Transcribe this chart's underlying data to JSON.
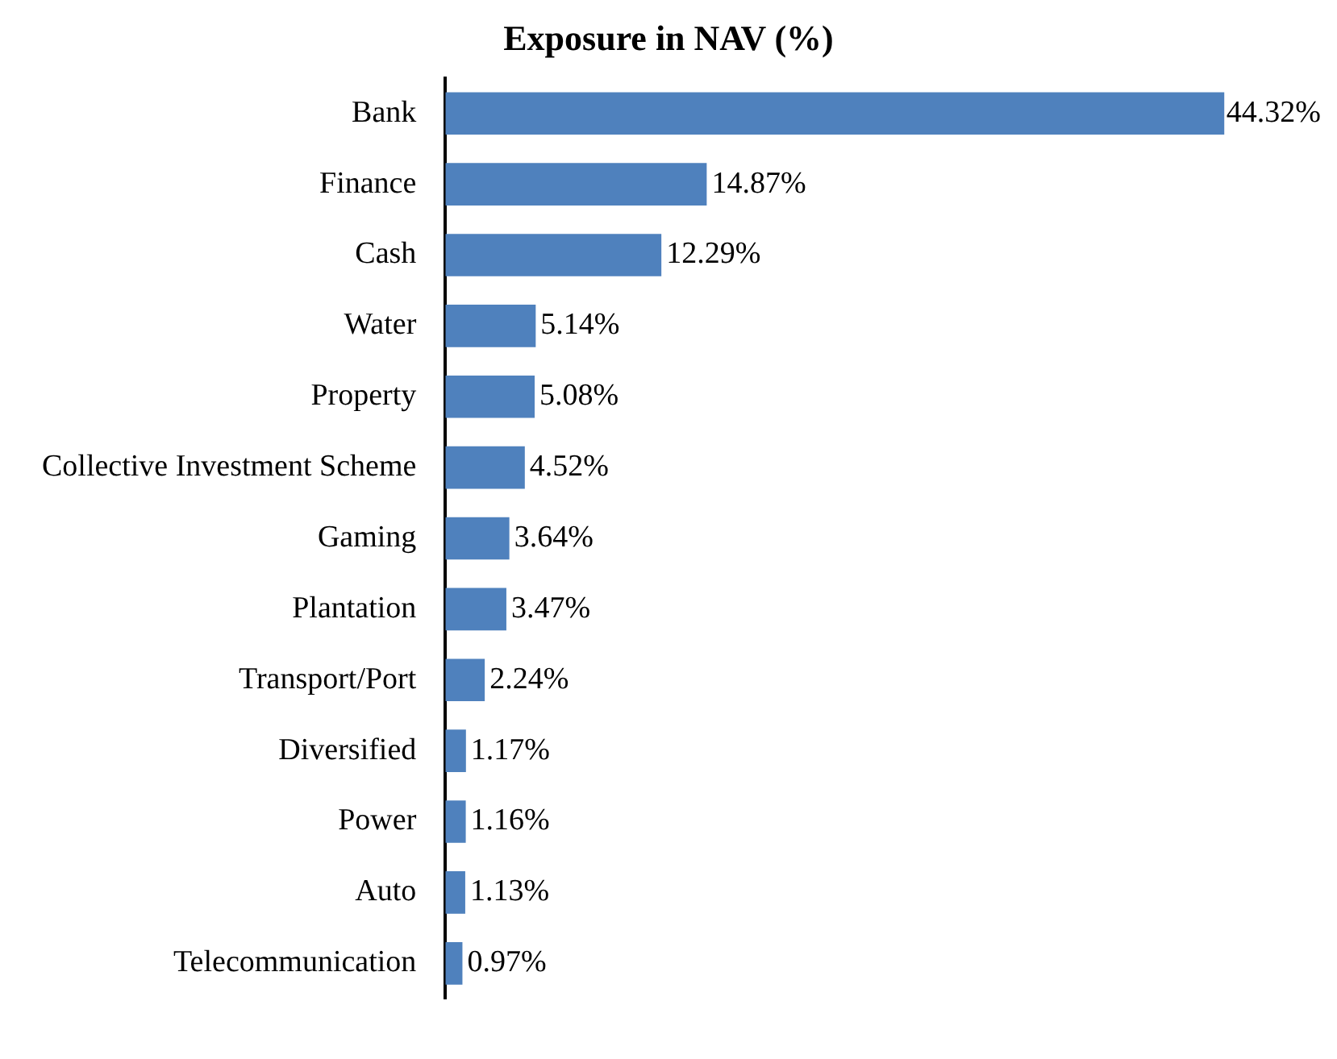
{
  "chart_data": {
    "type": "bar",
    "orientation": "horizontal",
    "title": "Exposure in NAV (%)",
    "categories": [
      "Bank",
      "Finance",
      "Cash",
      "Water",
      "Property",
      "Collective Investment Scheme",
      "Gaming",
      "Plantation",
      "Transport/Port",
      "Diversified",
      "Power",
      "Auto",
      "Telecommunication"
    ],
    "values": [
      44.32,
      14.87,
      12.29,
      5.14,
      5.08,
      4.52,
      3.64,
      3.47,
      2.24,
      1.17,
      1.16,
      1.13,
      0.97
    ],
    "value_labels": [
      "44.32%",
      "14.87%",
      "12.29%",
      "5.14%",
      "5.08%",
      "4.52%",
      "3.64%",
      "3.47%",
      "2.24%",
      "1.17%",
      "1.16%",
      "1.13%",
      "0.97%"
    ],
    "color": "#4f81bd",
    "grid": false,
    "legend": false
  }
}
